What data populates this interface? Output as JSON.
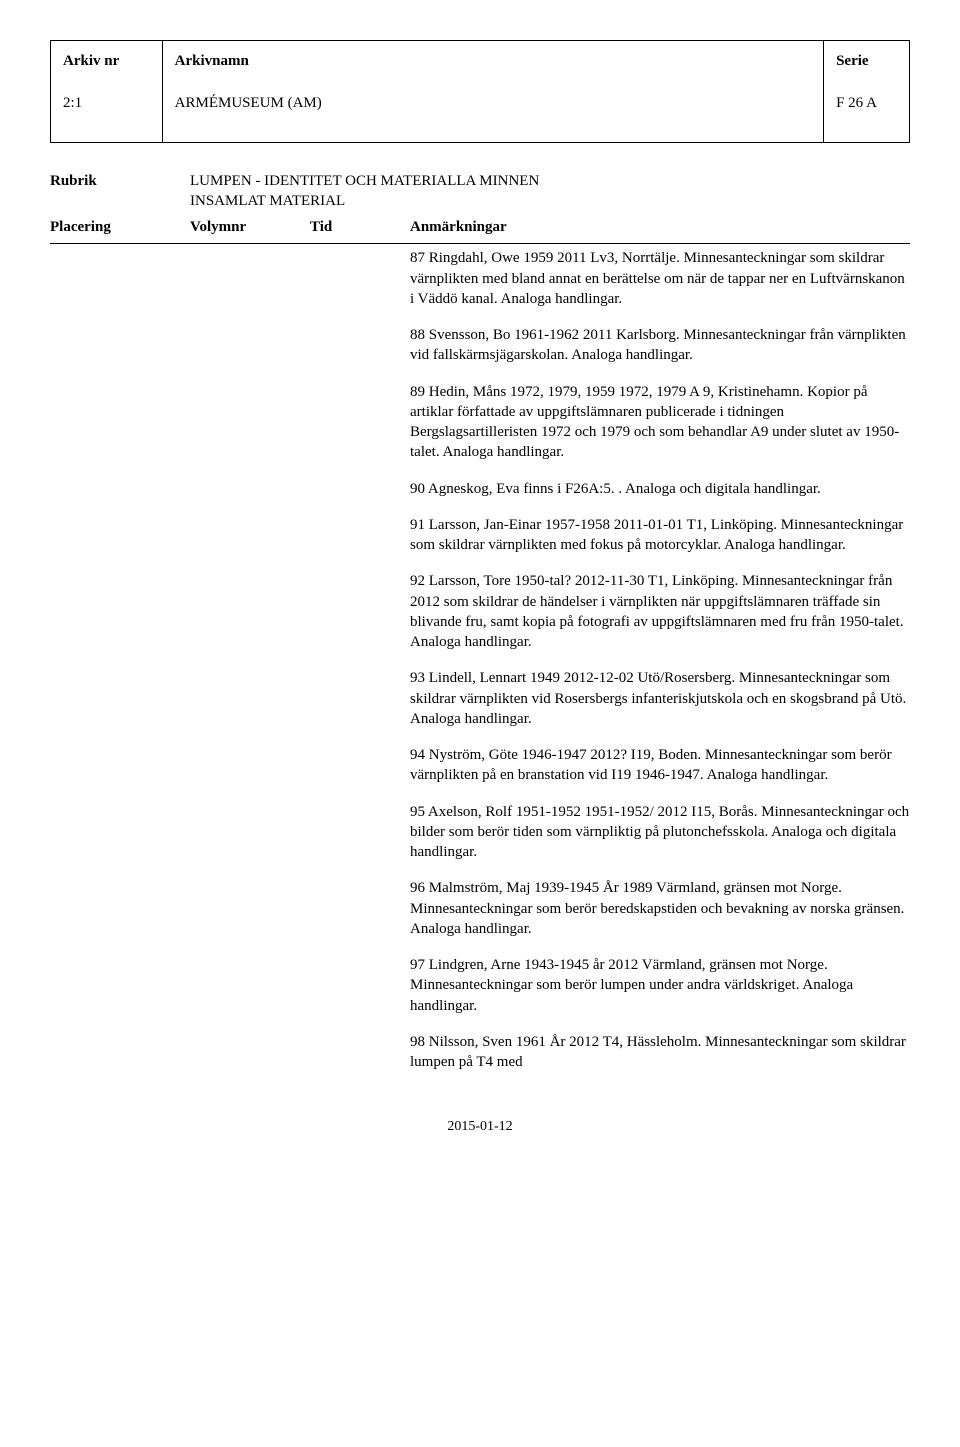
{
  "header": {
    "col1_label": "Arkiv nr",
    "col1_value": "2:1",
    "col2_label": "Arkivnamn",
    "col2_value": "ARMÉMUSEUM (AM)",
    "col3_label": "Serie",
    "col3_value": "F 26 A"
  },
  "rubrik": {
    "label": "Rubrik",
    "line1": "LUMPEN - IDENTITET OCH MATERIALLA MINNEN",
    "line2": "INSAMLAT MATERIAL"
  },
  "columns": {
    "c1": "Placering",
    "c2": "Volymnr",
    "c3": "Tid",
    "c4": "Anmärkningar"
  },
  "entries": [
    {
      "text": "87    Ringdahl, Owe      1959      2011      Lv3, Norrtälje.        Minnesanteckningar som skildrar värnplikten med bland annat en berättelse om när de tappar ner en Luftvärnskanon i Väddö kanal. Analoga handlingar."
    },
    {
      "text": "88    Svensson, Bo      1961-1962      2011      Karlsborg.        Minnesanteckningar från värnplikten vid fallskärmsjägarskolan. Analoga handlingar."
    },
    {
      "text": "89    Hedin, Måns   1972, 1979, 1959   1972, 1979      A 9, Kristinehamn.        Kopior på artiklar författade av uppgiftslämnaren publicerade i tidningen Bergslagsartilleristen 1972 och 1979 och som behandlar A9 under slutet av 1950-talet. Analoga handlingar."
    },
    {
      "text": "90    Agneskog, Eva finns i F26A:5. . Analoga och digitala handlingar."
    },
    {
      "text": "91   Larsson, Jan-Einar            1957-1958      2011-01-01      T1, Linköping.        Minnesanteckningar som skildrar värnplikten med fokus på motorcyklar. Analoga handlingar."
    },
    {
      "text": "92   Larsson, Tore            1950-tal?          2012-11-30      T1, Linköping.        Minnesanteckningar från 2012 som skildrar de händelser i värnplikten när uppgiftslämnaren träffade sin blivande fru, samt kopia på fotografi av uppgiftslämnaren med fru från 1950-talet. Analoga handlingar."
    },
    {
      "text": "93   Lindell, Lennart       1949          2012-12-02      Utö/Rosersberg.        Minnesanteckningar som skildrar värnplikten vid Rosersbergs infanteriskjutskola och en skogsbrand på Utö. Analoga handlingar."
    },
    {
      "text": "94    Nyström, Göte        1946-1947        2012?        I19, Boden.        Minnesanteckningar som berör värnplikten på en branstation vid I19 1946-1947. Analoga handlingar."
    },
    {
      "text": "95    Axelson, Rolf        1951-1952      1951-1952/ 2012    I15, Borås.        Minnesanteckningar och bilder som berör tiden som värnpliktig på plutonchefsskola. Analoga och digitala handlingar."
    },
    {
      "text": "96   Malmström, Maj    1939-1945        År 1989   Värmland, gränsen mot Norge.          Minnesanteckningar som berör beredskapstiden och bevakning av norska gränsen. Analoga handlingar."
    },
    {
      "text": "97   Lindgren, Arne        1943-1945        år 2012    Värmland, gränsen mot Norge.\n        Minnesanteckningar som berör lumpen under andra världskriget. Analoga handlingar."
    },
    {
      "text": "98    Nilsson, Sven        1961        År 2012   T4, Hässleholm.        Minnesanteckningar som skildrar lumpen på T4 med"
    }
  ],
  "footer": {
    "date": "2015-01-12"
  }
}
